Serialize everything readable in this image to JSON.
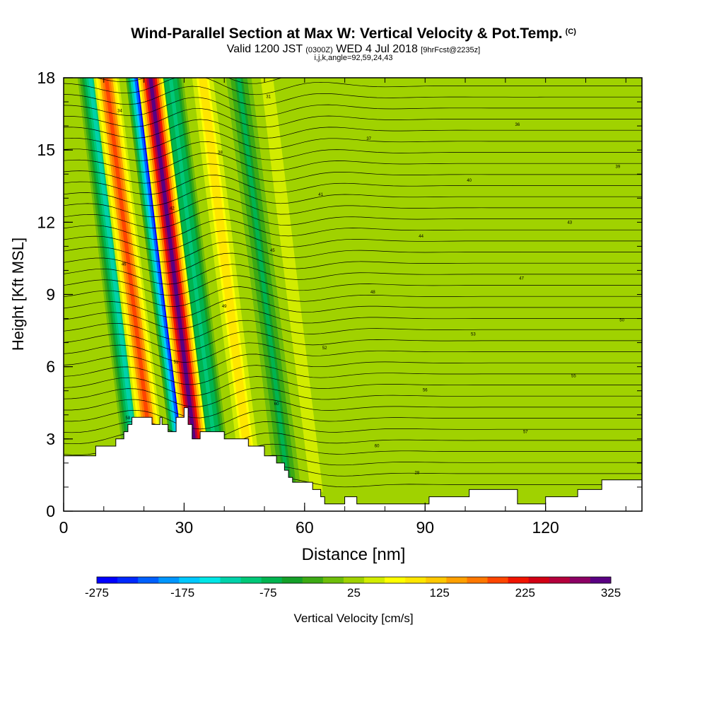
{
  "header": {
    "title": "Wind-Parallel Section at Max W: Vertical Velocity & Pot.Temp.",
    "title_mark": "(C)",
    "valid_prefix": "Valid 1200 JST",
    "valid_utc": "(0300Z)",
    "valid_date": "WED 4 Jul 2018",
    "forecast": "[9hrFcst@2235z]",
    "indices": "i,j,k,angle=92,59,24,43"
  },
  "chart_data": {
    "type": "heatmap",
    "title": "Wind-Parallel Section at Max W: Vertical Velocity & Pot.Temp.",
    "xlabel": "Distance [nm]",
    "ylabel": "Height [Kft MSL]",
    "xlim": [
      0,
      144
    ],
    "ylim": [
      0,
      18
    ],
    "xticks": [
      0,
      30,
      60,
      90,
      120
    ],
    "yticks": [
      0,
      3,
      6,
      9,
      12,
      15,
      18
    ],
    "colorbar": {
      "label": "Vertical Velocity [cm/s]",
      "ticks": [
        -275,
        -175,
        -75,
        25,
        125,
        225,
        325
      ],
      "bounds": [
        -275,
        325
      ],
      "colors": [
        "#0000ff",
        "#0028ff",
        "#0060ff",
        "#0096ff",
        "#00c8ff",
        "#00e6e6",
        "#00d2aa",
        "#00c878",
        "#00b450",
        "#14a028",
        "#3caa14",
        "#6ebe0a",
        "#a0d200",
        "#d2ec00",
        "#ffff00",
        "#ffe600",
        "#ffc800",
        "#ffa000",
        "#ff7800",
        "#ff4600",
        "#f01400",
        "#d20014",
        "#b4003c",
        "#8c0064",
        "#5a0082"
      ]
    },
    "terrain_kft": [
      [
        0,
        2.3
      ],
      [
        3,
        2.3
      ],
      [
        8,
        2.3
      ],
      [
        8,
        2.7
      ],
      [
        13,
        2.7
      ],
      [
        13,
        3.0
      ],
      [
        15,
        3.0
      ],
      [
        15,
        3.3
      ],
      [
        16,
        3.3
      ],
      [
        16,
        3.6
      ],
      [
        17,
        3.6
      ],
      [
        17,
        3.9
      ],
      [
        22,
        3.9
      ],
      [
        22,
        3.6
      ],
      [
        24,
        3.6
      ],
      [
        24,
        3.9
      ],
      [
        24.5,
        3.9
      ],
      [
        24.5,
        3.6
      ],
      [
        26,
        3.6
      ],
      [
        26,
        3.3
      ],
      [
        28,
        3.3
      ],
      [
        28,
        3.9
      ],
      [
        30,
        3.9
      ],
      [
        30,
        4.3
      ],
      [
        31,
        4.3
      ],
      [
        31,
        3.6
      ],
      [
        32,
        3.6
      ],
      [
        32,
        3.0
      ],
      [
        34,
        3.0
      ],
      [
        34,
        3.3
      ],
      [
        40,
        3.3
      ],
      [
        40,
        3.0
      ],
      [
        46,
        3.0
      ],
      [
        46,
        2.7
      ],
      [
        50,
        2.7
      ],
      [
        50,
        2.3
      ],
      [
        53,
        2.3
      ],
      [
        53,
        2.0
      ],
      [
        55,
        2.0
      ],
      [
        55,
        1.7
      ],
      [
        56,
        1.7
      ],
      [
        56,
        1.4
      ],
      [
        57,
        1.4
      ],
      [
        57,
        1.2
      ],
      [
        62,
        1.2
      ],
      [
        62,
        0.9
      ],
      [
        64,
        0.9
      ],
      [
        64,
        0.6
      ],
      [
        65,
        0.6
      ],
      [
        65,
        0.3
      ],
      [
        70,
        0.3
      ],
      [
        70,
        0.6
      ],
      [
        73,
        0.6
      ],
      [
        73,
        0.3
      ],
      [
        91,
        0.3
      ],
      [
        91,
        0.6
      ],
      [
        101,
        0.6
      ],
      [
        101,
        0.9
      ],
      [
        113,
        0.9
      ],
      [
        113,
        0.3
      ],
      [
        120,
        0.3
      ],
      [
        120,
        0.6
      ],
      [
        128,
        0.6
      ],
      [
        128,
        0.9
      ],
      [
        134,
        0.9
      ],
      [
        134,
        1.3
      ],
      [
        144,
        1.3
      ]
    ],
    "updraft_cores": [
      {
        "x": 23,
        "peak_cms": 200
      },
      {
        "x": 34,
        "peak_cms": 325
      },
      {
        "x": 47,
        "peak_cms": 100
      },
      {
        "x": 63,
        "peak_cms": 50
      }
    ],
    "downdraft_cores": [
      {
        "x": 19,
        "peak_cms": -125
      },
      {
        "x": 31,
        "peak_cms": -275
      },
      {
        "x": 39,
        "peak_cms": -100
      },
      {
        "x": 56,
        "peak_cms": -60
      }
    ],
    "contour_labels": [
      "61",
      "59",
      "60",
      "57",
      "58",
      "60",
      "56",
      "55",
      "51",
      "52",
      "53",
      "50",
      "49",
      "48",
      "47",
      "46",
      "45",
      "44",
      "43",
      "42",
      "41",
      "40",
      "39",
      "38",
      "37",
      "36",
      "34",
      "31",
      "28"
    ]
  }
}
